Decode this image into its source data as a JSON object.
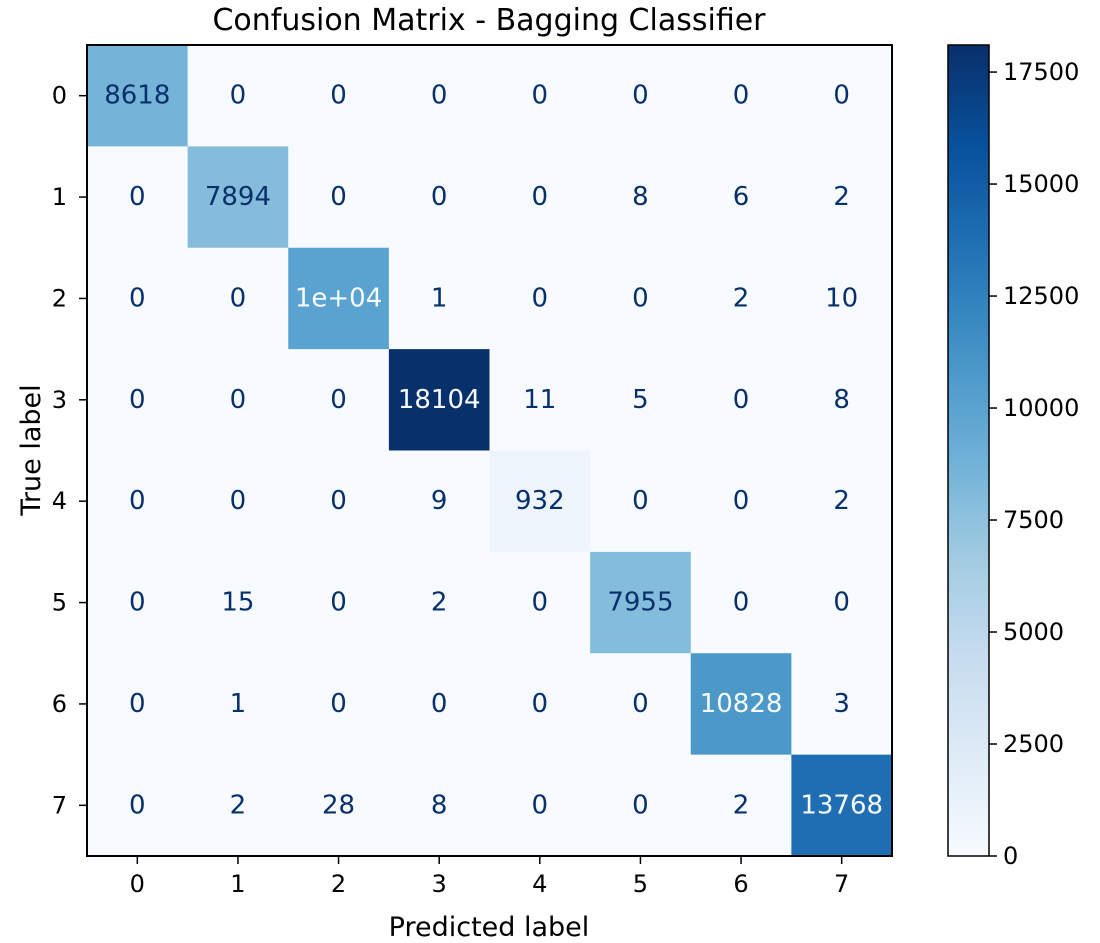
{
  "chart_data": {
    "type": "heatmap",
    "title": "Confusion Matrix - Bagging Classifier",
    "xlabel": "Predicted label",
    "ylabel": "True label",
    "x_tick_labels": [
      "0",
      "1",
      "2",
      "3",
      "4",
      "5",
      "6",
      "7"
    ],
    "y_tick_labels": [
      "0",
      "1",
      "2",
      "3",
      "4",
      "5",
      "6",
      "7"
    ],
    "cell_labels": [
      [
        "8618",
        "0",
        "0",
        "0",
        "0",
        "0",
        "0",
        "0"
      ],
      [
        "0",
        "7894",
        "0",
        "0",
        "0",
        "8",
        "6",
        "2"
      ],
      [
        "0",
        "0",
        "1e+04",
        "1",
        "0",
        "0",
        "2",
        "10"
      ],
      [
        "0",
        "0",
        "0",
        "18104",
        "11",
        "5",
        "0",
        "8"
      ],
      [
        "0",
        "0",
        "0",
        "9",
        "932",
        "0",
        "0",
        "2"
      ],
      [
        "0",
        "15",
        "0",
        "2",
        "0",
        "7955",
        "0",
        "0"
      ],
      [
        "0",
        "1",
        "0",
        "0",
        "0",
        "0",
        "10828",
        "3"
      ],
      [
        "0",
        "2",
        "28",
        "8",
        "0",
        "0",
        "2",
        "13768"
      ]
    ],
    "matrix": [
      [
        8618,
        0,
        0,
        0,
        0,
        0,
        0,
        0
      ],
      [
        0,
        7894,
        0,
        0,
        0,
        8,
        6,
        2
      ],
      [
        0,
        0,
        10000,
        1,
        0,
        0,
        2,
        10
      ],
      [
        0,
        0,
        0,
        18104,
        11,
        5,
        0,
        8
      ],
      [
        0,
        0,
        0,
        9,
        932,
        0,
        0,
        2
      ],
      [
        0,
        15,
        0,
        2,
        0,
        7955,
        0,
        0
      ],
      [
        0,
        1,
        0,
        0,
        0,
        0,
        10828,
        3
      ],
      [
        0,
        2,
        28,
        8,
        0,
        0,
        2,
        13768
      ]
    ],
    "colormap": "Blues",
    "color_range": [
      0,
      18104
    ],
    "colorbar_ticks": [
      0,
      2500,
      5000,
      7500,
      10000,
      12500,
      15000,
      17500
    ],
    "grid": false,
    "colors": {
      "cmap_low": "#f7fbff",
      "cmap_high": "#08306b",
      "text_dark": "#08306b",
      "text_light": "#f7fbff"
    }
  }
}
